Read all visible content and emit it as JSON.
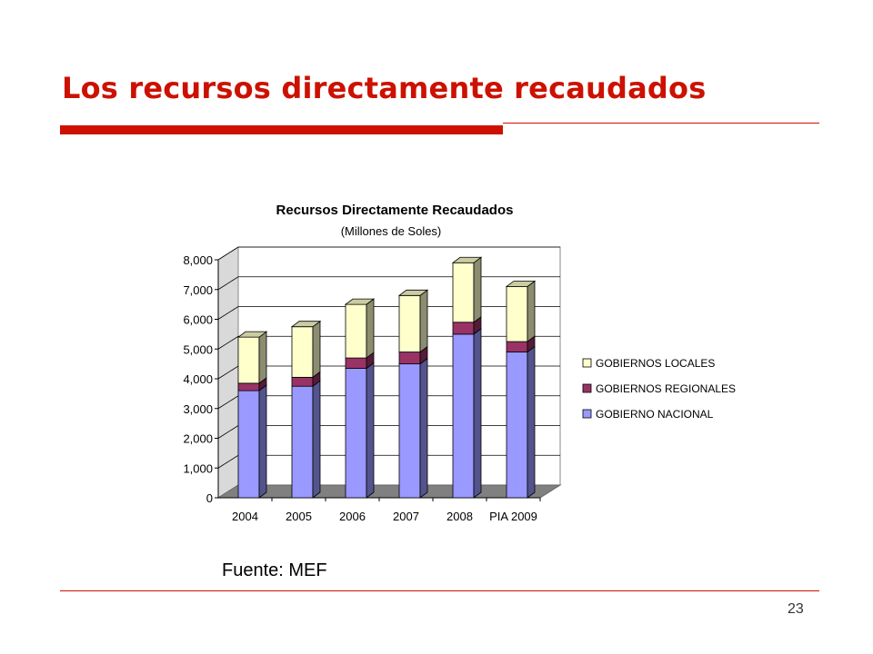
{
  "slide": {
    "title": "Los recursos directamente recaudados",
    "source": "Fuente: MEF",
    "page_number": "23"
  },
  "colors": {
    "accent": "#cc1100",
    "gobierno_nacional": "#9999ff",
    "gobiernos_regionales": "#993366",
    "gobiernos_locales": "#ffffcc"
  },
  "chart_data": {
    "type": "bar",
    "stacked": true,
    "three_d": true,
    "title": "Recursos Directamente Recaudados",
    "subtitle": "(Millones de Soles)",
    "xlabel": "",
    "ylabel": "",
    "ylim": [
      0,
      8000
    ],
    "yticks": [
      "0",
      "1,000",
      "2,000",
      "3,000",
      "4,000",
      "5,000",
      "6,000",
      "7,000",
      "8,000"
    ],
    "grid": true,
    "legend_position": "right",
    "categories": [
      "2004",
      "2005",
      "2006",
      "2007",
      "2008",
      "PIA 2009"
    ],
    "series": [
      {
        "name": "GOBIERNO NACIONAL",
        "values": [
          3600,
          3750,
          4350,
          4500,
          5500,
          4900
        ],
        "color": "#9999ff"
      },
      {
        "name": "GOBIERNOS REGIONALES",
        "values": [
          250,
          300,
          350,
          400,
          400,
          350
        ],
        "color": "#993366"
      },
      {
        "name": "GOBIERNOS LOCALES",
        "values": [
          1550,
          1700,
          1800,
          1900,
          2000,
          1850
        ],
        "color": "#ffffcc"
      }
    ],
    "legend_order": [
      "GOBIERNOS LOCALES",
      "GOBIERNOS REGIONALES",
      "GOBIERNO NACIONAL"
    ]
  }
}
